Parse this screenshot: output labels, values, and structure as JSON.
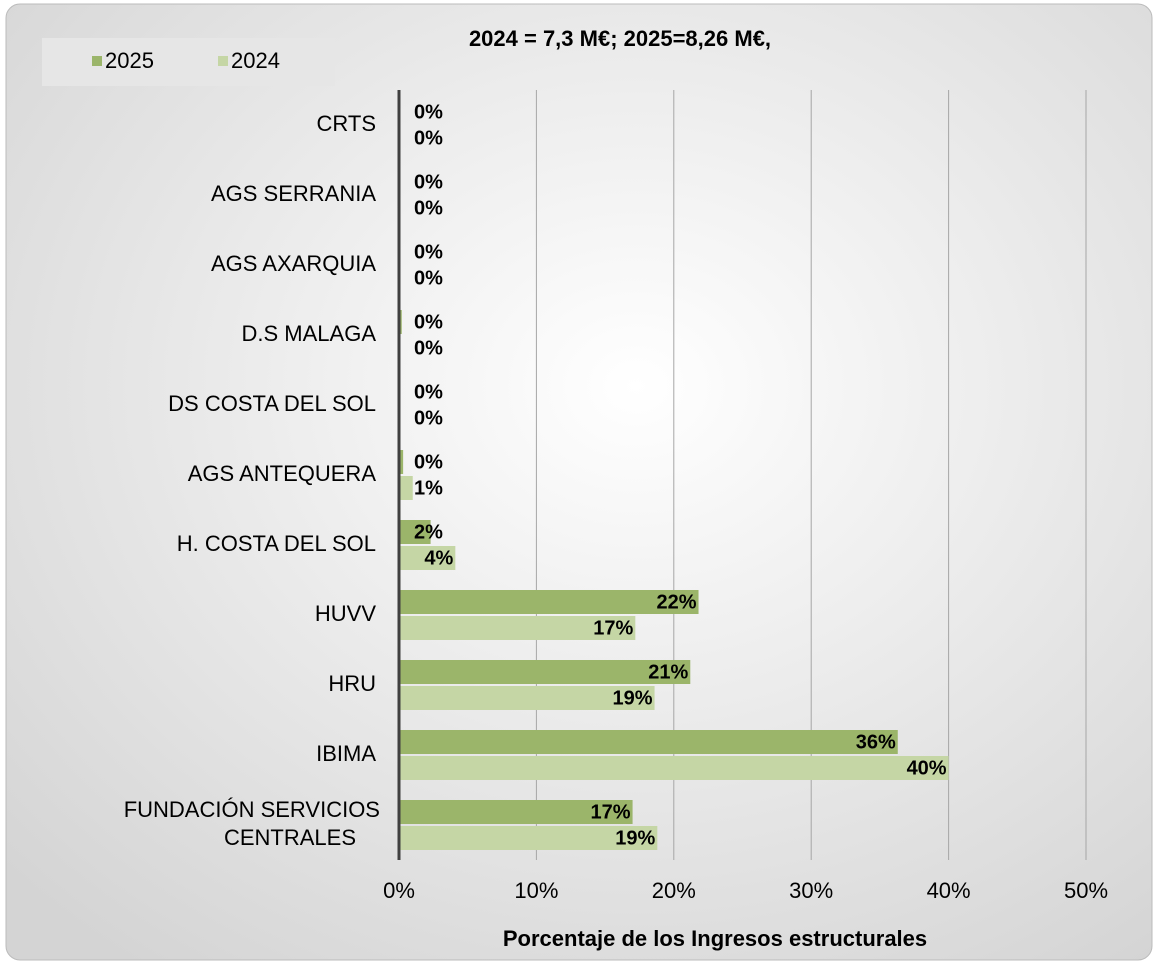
{
  "chart_data": {
    "type": "hbar",
    "title": "2024 = 7,3  M€; 2025=8,26  M€,",
    "x_label": "Porcentaje de los Ingresos estructurales",
    "categories": [
      "CRTS",
      "AGS SERRANIA",
      "AGS AXARQUIA",
      "D.S MALAGA",
      "DS COSTA DEL SOL",
      "AGS ANTEQUERA",
      "H. COSTA DEL SOL",
      "HUVV",
      "HRU",
      "IBIMA",
      "FUNDACIÓN SERVICIOS CENTRALES"
    ],
    "series": [
      {
        "name": "2025",
        "color": "#9bb56a",
        "values": [
          0,
          0,
          0,
          0.2,
          0,
          0.3,
          2.3,
          21.8,
          21.2,
          36.3,
          17.0
        ],
        "value_labels": [
          "0%",
          "0%",
          "0%",
          "0%",
          "0%",
          "0%",
          "2%",
          "22%",
          "21%",
          "36%",
          "17%"
        ]
      },
      {
        "name": "2024",
        "color": "#c5d6a5",
        "values": [
          0,
          0,
          0,
          0,
          0,
          1.0,
          4.1,
          17.2,
          18.6,
          40.0,
          18.8
        ],
        "value_labels": [
          "0%",
          "0%",
          "0%",
          "0%",
          "0%",
          "1%",
          "4%",
          "17%",
          "19%",
          "40%",
          "19%"
        ]
      }
    ],
    "xlim": [
      0,
      50
    ],
    "xticks": [
      {
        "value": 0,
        "label": "0%"
      },
      {
        "value": 10,
        "label": "10%"
      },
      {
        "value": 20,
        "label": "20%"
      },
      {
        "value": 30,
        "label": "30%"
      },
      {
        "value": 40,
        "label": "40%"
      },
      {
        "value": 50,
        "label": "50%"
      }
    ],
    "grid": true,
    "legend": "top-left"
  }
}
